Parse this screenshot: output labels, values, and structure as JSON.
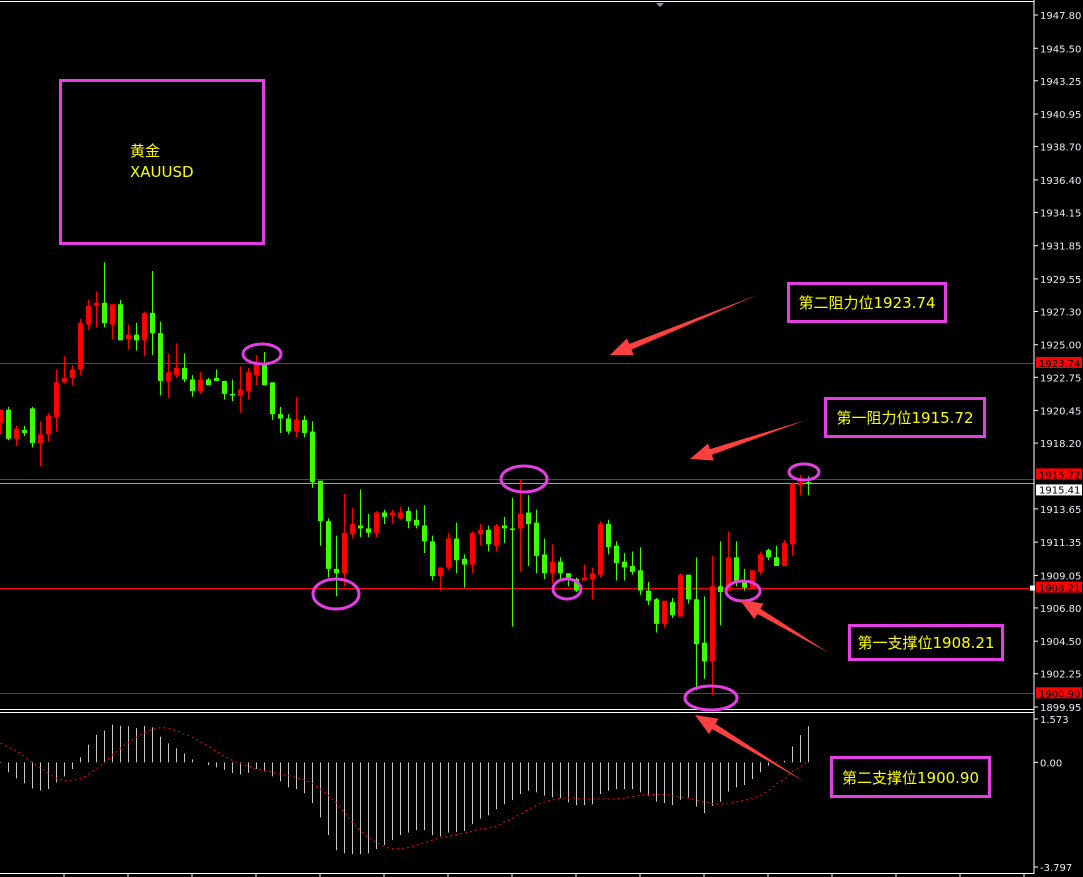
{
  "colors": {
    "up": "#ff0000",
    "down": "#3cff00",
    "background": "#000000",
    "axis": "#ffffff",
    "annotation_border": "#e53ee5",
    "annotation_text": "#ffff00",
    "arrow": "#ff4040",
    "signal": "#ff0000",
    "histogram": "#c8c8c8"
  },
  "title_box": {
    "name": "黄金",
    "symbol": "XAUUSD"
  },
  "annotations": {
    "resistance2": "第二阻力位1923.74",
    "resistance1": "第一阻力位1915.72",
    "support1": "第一支撑位1908.21",
    "support2": "第二支撑位1900.90"
  },
  "chart_data": [
    {
      "type": "candlestick",
      "ylim": [
        1899.95,
        1947.8
      ],
      "grid": false,
      "y_ticks": [
        "1947.80",
        "1945.50",
        "1943.25",
        "1940.95",
        "1938.70",
        "1936.40",
        "1934.15",
        "1931.85",
        "1929.55",
        "1927.30",
        "1925.00",
        "1922.75",
        "1920.45",
        "1918.20",
        "1913.65",
        "1911.35",
        "1909.05",
        "1906.80",
        "1904.50",
        "1902.25",
        "1899.95"
      ],
      "levels": [
        {
          "value": 1923.74,
          "label": "1923.74",
          "color": "#ff0000"
        },
        {
          "value": 1915.72,
          "label": "1915.72",
          "color": "#ff0000"
        },
        {
          "value": 1908.21,
          "label": "1908.21",
          "color": "#ff0000"
        },
        {
          "value": 1900.9,
          "label": "1900.90",
          "color": "#ff0000"
        }
      ],
      "current_price": {
        "value": 1915.41,
        "label": "1915.41"
      },
      "ohlc_fields": [
        "open",
        "high",
        "low",
        "close"
      ],
      "candles": [
        [
          1919.6,
          1920.5,
          1918.8,
          1920.5
        ],
        [
          1920.5,
          1920.7,
          1918.4,
          1918.5
        ],
        [
          1918.5,
          1919.4,
          1918.0,
          1919.2
        ],
        [
          1919.1,
          1919.4,
          1918.7,
          1918.9
        ],
        [
          1920.6,
          1920.7,
          1917.9,
          1918.2
        ],
        [
          1918.2,
          1919.7,
          1916.6,
          1918.8
        ],
        [
          1918.8,
          1920.3,
          1918.3,
          1920.1
        ],
        [
          1920.0,
          1923.3,
          1919.0,
          1922.4
        ],
        [
          1922.4,
          1924.2,
          1922.3,
          1922.7
        ],
        [
          1922.7,
          1923.6,
          1922.2,
          1923.3
        ],
        [
          1923.3,
          1926.8,
          1922.9,
          1926.5
        ],
        [
          1926.4,
          1928.1,
          1926.0,
          1927.7
        ],
        [
          1927.7,
          1928.7,
          1926.2,
          1927.9
        ],
        [
          1927.9,
          1930.7,
          1926.2,
          1926.5
        ],
        [
          1926.4,
          1927.8,
          1925.4,
          1927.8
        ],
        [
          1927.8,
          1928.1,
          1925.3,
          1925.3
        ],
        [
          1925.4,
          1926.4,
          1924.7,
          1925.7
        ],
        [
          1925.7,
          1926.5,
          1924.6,
          1925.3
        ],
        [
          1925.3,
          1927.3,
          1924.2,
          1927.2
        ],
        [
          1927.2,
          1930.1,
          1924.3,
          1925.8
        ],
        [
          1925.8,
          1926.6,
          1921.5,
          1922.5
        ],
        [
          1922.5,
          1924.4,
          1921.3,
          1923.1
        ],
        [
          1922.9,
          1925.1,
          1922.7,
          1923.4
        ],
        [
          1923.4,
          1924.4,
          1922.4,
          1922.6
        ],
        [
          1922.6,
          1922.9,
          1921.4,
          1921.8
        ],
        [
          1921.8,
          1923.1,
          1921.6,
          1922.6
        ],
        [
          1922.6,
          1922.7,
          1922.2,
          1922.2
        ],
        [
          1922.7,
          1923.3,
          1922.5,
          1922.5
        ],
        [
          1922.5,
          1922.5,
          1921.2,
          1921.6
        ],
        [
          1921.6,
          1922.6,
          1921.1,
          1921.5
        ],
        [
          1921.5,
          1923.5,
          1920.3,
          1921.9
        ],
        [
          1921.8,
          1923.4,
          1921.2,
          1923.1
        ],
        [
          1922.9,
          1924.3,
          1922.2,
          1923.7
        ],
        [
          1923.6,
          1924.5,
          1922.2,
          1922.2
        ],
        [
          1922.4,
          1922.4,
          1919.8,
          1920.2
        ],
        [
          1920.2,
          1920.7,
          1918.9,
          1919.9
        ],
        [
          1919.9,
          1920.2,
          1918.8,
          1919.0
        ],
        [
          1919.0,
          1921.4,
          1918.6,
          1919.8
        ],
        [
          1919.8,
          1920.1,
          1918.6,
          1918.9
        ],
        [
          1919.0,
          1919.7,
          1915.1,
          1915.5
        ],
        [
          1915.6,
          1915.6,
          1911.1,
          1912.8
        ],
        [
          1912.8,
          1913.0,
          1908.9,
          1909.5
        ],
        [
          1909.5,
          1911.8,
          1907.6,
          1909.2
        ],
        [
          1909.2,
          1914.7,
          1908.3,
          1912.0
        ],
        [
          1911.9,
          1913.7,
          1911.6,
          1912.6
        ],
        [
          1912.5,
          1915.0,
          1911.7,
          1912.3
        ],
        [
          1912.3,
          1913.3,
          1911.7,
          1912.0
        ],
        [
          1912.0,
          1913.5,
          1911.7,
          1913.4
        ],
        [
          1913.4,
          1913.6,
          1912.6,
          1913.1
        ],
        [
          1913.2,
          1913.6,
          1912.6,
          1913.4
        ],
        [
          1913.0,
          1913.8,
          1912.9,
          1913.4
        ],
        [
          1913.5,
          1913.8,
          1912.3,
          1912.8
        ],
        [
          1912.9,
          1913.6,
          1912.3,
          1912.5
        ],
        [
          1912.5,
          1913.9,
          1910.6,
          1911.4
        ],
        [
          1911.4,
          1911.8,
          1908.7,
          1909.0
        ],
        [
          1909.0,
          1909.6,
          1908.0,
          1909.6
        ],
        [
          1909.6,
          1912.0,
          1909.4,
          1911.6
        ],
        [
          1911.6,
          1912.7,
          1909.2,
          1910.1
        ],
        [
          1910.2,
          1910.5,
          1908.2,
          1909.8
        ],
        [
          1909.8,
          1912.1,
          1909.2,
          1912.0
        ],
        [
          1911.9,
          1912.6,
          1911.1,
          1912.2
        ],
        [
          1912.2,
          1912.5,
          1910.7,
          1911.2
        ],
        [
          1911.1,
          1912.6,
          1910.7,
          1912.5
        ],
        [
          1912.5,
          1913.1,
          1911.3,
          1912.3
        ],
        [
          1912.3,
          1914.4,
          1905.5,
          1912.2
        ],
        [
          1912.3,
          1915.7,
          1909.3,
          1913.3
        ],
        [
          1913.4,
          1914.6,
          1909.7,
          1912.6
        ],
        [
          1912.7,
          1913.6,
          1909.2,
          1910.4
        ],
        [
          1910.5,
          1911.6,
          1908.8,
          1909.2
        ],
        [
          1909.2,
          1911.2,
          1908.5,
          1910.0
        ],
        [
          1910.0,
          1910.3,
          1908.8,
          1909.2
        ],
        [
          1909.2,
          1909.2,
          1908.3,
          1908.9
        ],
        [
          1908.8,
          1908.9,
          1907.9,
          1908.0
        ],
        [
          1908.7,
          1909.8,
          1908.7,
          1908.9
        ],
        [
          1908.8,
          1909.6,
          1907.4,
          1909.2
        ],
        [
          1909.1,
          1912.8,
          1908.9,
          1912.6
        ],
        [
          1912.6,
          1912.9,
          1910.5,
          1911.0
        ],
        [
          1911.1,
          1911.4,
          1908.7,
          1909.9
        ],
        [
          1910.0,
          1910.6,
          1908.7,
          1909.6
        ],
        [
          1909.7,
          1910.7,
          1909.1,
          1909.3
        ],
        [
          1909.4,
          1911.0,
          1907.7,
          1908.0
        ],
        [
          1908.0,
          1908.6,
          1907.0,
          1907.3
        ],
        [
          1907.4,
          1907.5,
          1905.1,
          1905.7
        ],
        [
          1905.7,
          1907.3,
          1905.4,
          1907.3
        ],
        [
          1907.2,
          1907.5,
          1906.1,
          1906.3
        ],
        [
          1906.2,
          1909.2,
          1906.2,
          1909.1
        ],
        [
          1909.1,
          1909.1,
          1907.1,
          1907.4
        ],
        [
          1907.4,
          1910.3,
          1901.1,
          1904.3
        ],
        [
          1904.4,
          1907.6,
          1901.9,
          1903.1
        ],
        [
          1903.1,
          1910.4,
          1900.8,
          1908.3
        ],
        [
          1908.3,
          1911.4,
          1905.6,
          1907.9
        ],
        [
          1908.0,
          1912.1,
          1908.0,
          1910.3
        ],
        [
          1910.3,
          1911.4,
          1908.3,
          1908.6
        ],
        [
          1908.6,
          1909.5,
          1908.0,
          1908.2
        ],
        [
          1908.2,
          1909.4,
          1908.2,
          1909.4
        ],
        [
          1909.3,
          1910.7,
          1909.1,
          1910.5
        ],
        [
          1910.8,
          1910.9,
          1910.1,
          1910.3
        ],
        [
          1910.3,
          1911.1,
          1909.7,
          1909.7
        ],
        [
          1909.7,
          1911.5,
          1909.7,
          1911.3
        ],
        [
          1911.2,
          1915.4,
          1910.4,
          1915.4
        ],
        [
          1915.3,
          1916.0,
          1914.6,
          1915.5
        ],
        [
          1915.5,
          1915.9,
          1914.6,
          1915.41
        ]
      ]
    },
    {
      "type": "bar+line",
      "ylim": [
        -3.797,
        1.573
      ],
      "y_ticks": [
        "1.573",
        "0.00",
        "-3.797"
      ],
      "histogram": [
        -0.02,
        -0.36,
        -0.58,
        -0.76,
        -0.95,
        -1.02,
        -0.97,
        -0.73,
        -0.51,
        -0.24,
        0.18,
        0.64,
        1.0,
        1.15,
        1.37,
        1.33,
        1.31,
        1.24,
        1.33,
        1.27,
        0.93,
        0.69,
        0.51,
        0.32,
        0.11,
        0.0,
        -0.1,
        -0.18,
        -0.27,
        -0.38,
        -0.44,
        -0.38,
        -0.24,
        -0.33,
        -0.51,
        -0.69,
        -0.91,
        -0.97,
        -1.12,
        -1.48,
        -2.0,
        -2.64,
        -3.19,
        -3.3,
        -3.33,
        -3.33,
        -3.3,
        -3.15,
        -3.0,
        -2.82,
        -2.64,
        -2.55,
        -2.46,
        -2.46,
        -2.64,
        -2.69,
        -2.55,
        -2.53,
        -2.49,
        -2.24,
        -2.04,
        -1.92,
        -1.7,
        -1.52,
        -1.37,
        -1.15,
        -1.03,
        -1.09,
        -1.21,
        -1.27,
        -1.3,
        -1.45,
        -1.55,
        -1.55,
        -1.52,
        -1.15,
        -1.03,
        -0.97,
        -0.97,
        -0.97,
        -1.09,
        -1.21,
        -1.43,
        -1.48,
        -1.55,
        -1.36,
        -1.27,
        -1.6,
        -1.84,
        -1.58,
        -1.43,
        -1.06,
        -0.91,
        -0.82,
        -0.61,
        -0.36,
        -0.12,
        0.02,
        0.06,
        0.58,
        0.99,
        1.31
      ],
      "signal": [
        0.7,
        0.55,
        0.42,
        0.22,
        -0.02,
        -0.2,
        -0.4,
        -0.58,
        -0.67,
        -0.67,
        -0.58,
        -0.44,
        -0.24,
        0.0,
        0.27,
        0.51,
        0.73,
        0.91,
        1.07,
        1.21,
        1.26,
        1.24,
        1.15,
        1.03,
        0.91,
        0.75,
        0.58,
        0.39,
        0.22,
        0.07,
        -0.05,
        -0.13,
        -0.24,
        -0.3,
        -0.36,
        -0.44,
        -0.48,
        -0.56,
        -0.64,
        -0.76,
        -0.97,
        -1.21,
        -1.48,
        -1.82,
        -2.18,
        -2.48,
        -2.73,
        -2.91,
        -3.06,
        -3.14,
        -3.13,
        -3.09,
        -3.0,
        -2.91,
        -2.82,
        -2.74,
        -2.69,
        -2.62,
        -2.55,
        -2.5,
        -2.42,
        -2.38,
        -2.33,
        -2.15,
        -2.04,
        -1.88,
        -1.7,
        -1.55,
        -1.43,
        -1.36,
        -1.3,
        -1.3,
        -1.3,
        -1.33,
        -1.33,
        -1.33,
        -1.33,
        -1.33,
        -1.3,
        -1.24,
        -1.19,
        -1.16,
        -1.16,
        -1.17,
        -1.21,
        -1.27,
        -1.3,
        -1.36,
        -1.45,
        -1.5,
        -1.52,
        -1.5,
        -1.43,
        -1.38,
        -1.3,
        -1.21,
        -1.03,
        -0.79,
        -0.61,
        -0.33,
        -0.18,
        0.06
      ]
    }
  ]
}
